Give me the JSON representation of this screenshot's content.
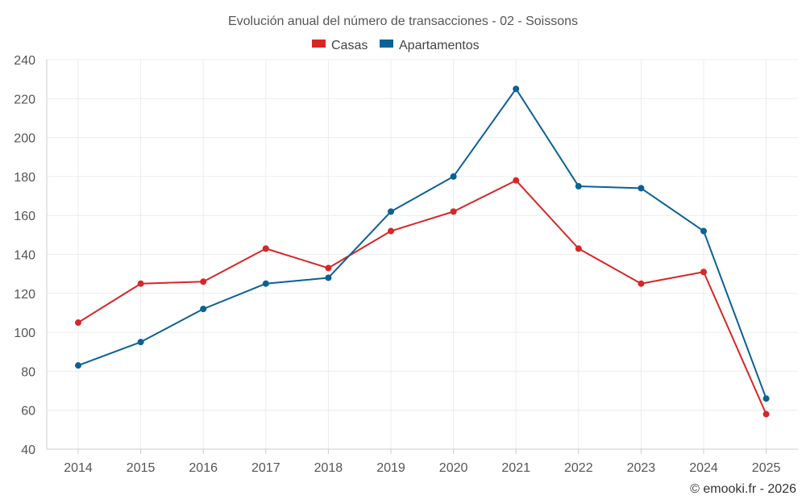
{
  "chart_data": {
    "type": "line",
    "title": "Evolución anual del número de transacciones - 02 - Soissons",
    "categories": [
      "2014",
      "2015",
      "2016",
      "2017",
      "2018",
      "2019",
      "2020",
      "2021",
      "2022",
      "2023",
      "2024",
      "2025"
    ],
    "series": [
      {
        "name": "Casas",
        "color": "#d62728",
        "values": [
          105,
          125,
          126,
          143,
          133,
          152,
          162,
          178,
          143,
          125,
          131,
          58
        ]
      },
      {
        "name": "Apartamentos",
        "color": "#0a6195",
        "values": [
          83,
          95,
          112,
          125,
          128,
          162,
          180,
          225,
          175,
          174,
          152,
          66
        ]
      }
    ],
    "ylim": [
      40,
      240
    ],
    "yticks": [
      40,
      60,
      80,
      100,
      120,
      140,
      160,
      180,
      200,
      220,
      240
    ],
    "grid": true,
    "legend": "top-center",
    "xlabel": "",
    "ylabel": ""
  },
  "credit": "© emooki.fr - 2026"
}
